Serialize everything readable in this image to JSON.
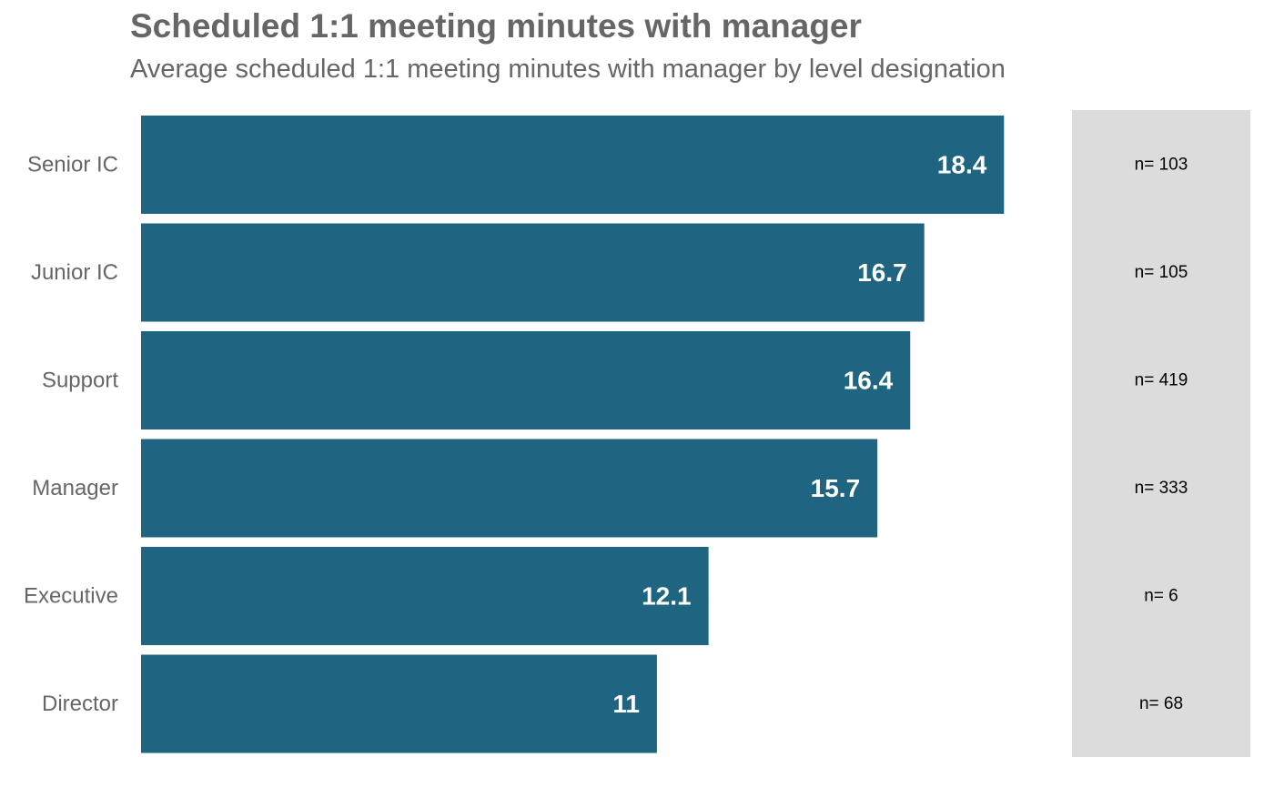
{
  "chart_data": {
    "type": "bar",
    "orientation": "horizontal",
    "title": "Scheduled 1:1 meeting minutes with manager",
    "subtitle": "Average scheduled 1:1 meeting minutes with manager by level designation",
    "categories": [
      "Senior IC",
      "Junior IC",
      "Support",
      "Manager",
      "Executive",
      "Director"
    ],
    "values": [
      18.4,
      16.7,
      16.4,
      15.7,
      12.1,
      11
    ],
    "value_labels": [
      "18.4",
      "16.7",
      "16.4",
      "15.7",
      "12.1",
      "11"
    ],
    "n_labels": [
      "n= 103",
      "n= 105",
      "n= 419",
      "n= 333",
      "n= 6",
      "n= 68"
    ],
    "xlim": [
      0,
      19.5
    ],
    "grid": false,
    "bar_color": "#1f6480",
    "n_panel_color": "#dcdcdc"
  }
}
